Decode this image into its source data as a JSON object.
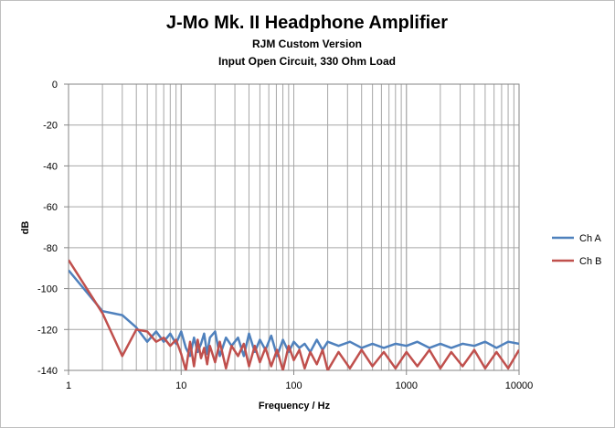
{
  "chart_data": {
    "type": "line",
    "title": "J-Mo Mk. II Headphone Amplifier",
    "subtitle_1": "RJM Custom Version",
    "subtitle_2": "Input Open Circuit, 330 Ohm Load",
    "xlabel": "Frequency / Hz",
    "ylabel": "dB",
    "x_scale": "log",
    "xlim": [
      1,
      10000
    ],
    "ylim": [
      -140,
      0
    ],
    "x_ticks": [
      "1",
      "10",
      "100",
      "1000",
      "10000"
    ],
    "y_ticks": [
      "0",
      "-20",
      "-40",
      "-60",
      "-80",
      "-100",
      "-120",
      "-140"
    ],
    "grid": true,
    "legend_position": "right",
    "series": [
      {
        "name": "Ch A",
        "color": "#4F81BD",
        "x": [
          1,
          2,
          3,
          4,
          5,
          6,
          7,
          8,
          9,
          10,
          11,
          12,
          13,
          14,
          15,
          16,
          17,
          18,
          20,
          22,
          25,
          28,
          32,
          36,
          40,
          45,
          50,
          56,
          63,
          71,
          80,
          90,
          100,
          112,
          125,
          140,
          160,
          180,
          200,
          250,
          315,
          400,
          500,
          630,
          800,
          1000,
          1250,
          1600,
          2000,
          2500,
          3150,
          4000,
          5000,
          6300,
          8000,
          10000
        ],
        "y": [
          -91,
          -111,
          -113,
          -119,
          -126,
          -121,
          -126,
          -122,
          -127,
          -121,
          -129,
          -133,
          -124,
          -131,
          -127,
          -122,
          -132,
          -124,
          -121,
          -133,
          -124,
          -128,
          -124,
          -133,
          -122,
          -131,
          -125,
          -130,
          -123,
          -133,
          -125,
          -131,
          -126,
          -129,
          -127,
          -131,
          -125,
          -130,
          -126,
          -128,
          -126,
          -129,
          -127,
          -129,
          -127,
          -128,
          -126,
          -129,
          -127,
          -129,
          -127,
          -128,
          -126,
          -129,
          -126,
          -127
        ]
      },
      {
        "name": "Ch B",
        "color": "#C0504D",
        "x": [
          1,
          2,
          3,
          4,
          5,
          6,
          7,
          8,
          9,
          10,
          11,
          12,
          13,
          14,
          15,
          16,
          17,
          18,
          20,
          22,
          25,
          28,
          32,
          36,
          40,
          45,
          50,
          56,
          63,
          71,
          80,
          90,
          100,
          112,
          125,
          140,
          160,
          180,
          200,
          250,
          315,
          400,
          500,
          630,
          800,
          1000,
          1250,
          1600,
          2000,
          2500,
          3150,
          4000,
          5000,
          6300,
          8000,
          10000
        ],
        "y": [
          -86,
          -112,
          -133,
          -120,
          -121,
          -126,
          -124,
          -128,
          -125,
          -132,
          -140,
          -126,
          -138,
          -125,
          -134,
          -129,
          -137,
          -128,
          -136,
          -126,
          -139,
          -128,
          -133,
          -127,
          -138,
          -128,
          -136,
          -129,
          -138,
          -130,
          -140,
          -128,
          -135,
          -130,
          -139,
          -131,
          -137,
          -130,
          -140,
          -131,
          -139,
          -130,
          -138,
          -131,
          -139,
          -131,
          -138,
          -130,
          -139,
          -131,
          -138,
          -130,
          -139,
          -131,
          -139,
          -130
        ]
      }
    ]
  }
}
